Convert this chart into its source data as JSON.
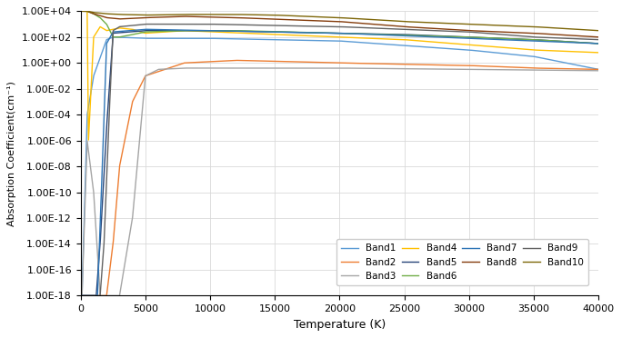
{
  "title": "",
  "xlabel": "Temperature (K)",
  "ylabel": "Absorption Coefficient(cm⁻¹)",
  "xlim": [
    0,
    40000
  ],
  "ylim_log": [
    -18,
    4
  ],
  "bands": {
    "Band1": {
      "color": "#5B9BD5",
      "linewidth": 1.0
    },
    "Band2": {
      "color": "#ED7D31",
      "linewidth": 1.0
    },
    "Band3": {
      "color": "#A5A5A5",
      "linewidth": 1.0
    },
    "Band4": {
      "color": "#FFC000",
      "linewidth": 1.0
    },
    "Band5": {
      "color": "#264478",
      "linewidth": 1.0
    },
    "Band6": {
      "color": "#70AD47",
      "linewidth": 1.0
    },
    "Band7": {
      "color": "#2E75B6",
      "linewidth": 1.0
    },
    "Band8": {
      "color": "#843C0C",
      "linewidth": 1.0
    },
    "Band9": {
      "color": "#636363",
      "linewidth": 1.0
    },
    "Band10": {
      "color": "#7D6608",
      "linewidth": 1.0
    }
  },
  "background_color": "#FFFFFF",
  "grid_color": "#D9D9D9"
}
